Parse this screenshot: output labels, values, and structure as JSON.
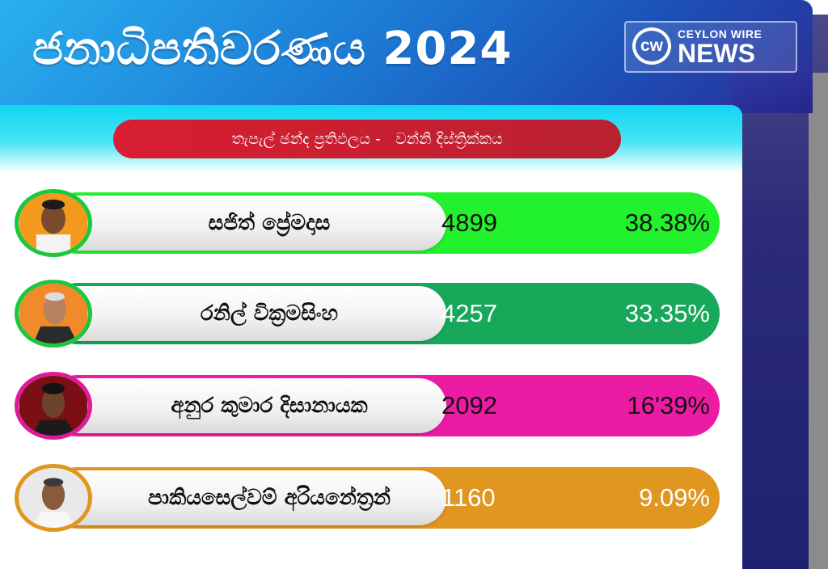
{
  "header": {
    "title": "ජනාධිපතිවරණය 2024",
    "logo": {
      "mark": "cw",
      "top_text": "CEYLON WIRE",
      "main_text": "NEWS"
    }
  },
  "subtitle": "තැපැල් ඡන්ද ප්‍රතිඵලය -   වන්නි දිස්ත්‍රික්කය",
  "candidates": [
    {
      "name": "සජිත් ප්‍රේමදාස",
      "votes": "4899",
      "percent": "38.38%",
      "bar_color": "#22f22c",
      "text_color": "#111111",
      "border_color": "#1ac83b"
    },
    {
      "name": "රනිල් වික්‍රමසිංහ",
      "votes": "4257",
      "percent": "33.35%",
      "bar_color": "#17a85a",
      "text_color": "#ffffff",
      "border_color": "#1ac83b"
    },
    {
      "name": "අනුර කුමාර දිසානායක",
      "votes": "2092",
      "percent": "16'39%",
      "bar_color": "#ec1ba4",
      "text_color": "#111111",
      "border_color": "#e01b9b"
    },
    {
      "name": "පාකියසෙල්වම් අරියනේත්‍රන්",
      "votes": "1160",
      "percent": "9.09%",
      "bar_color": "#e0961f",
      "text_color": "#ffffff",
      "border_color": "#e0961f"
    }
  ]
}
